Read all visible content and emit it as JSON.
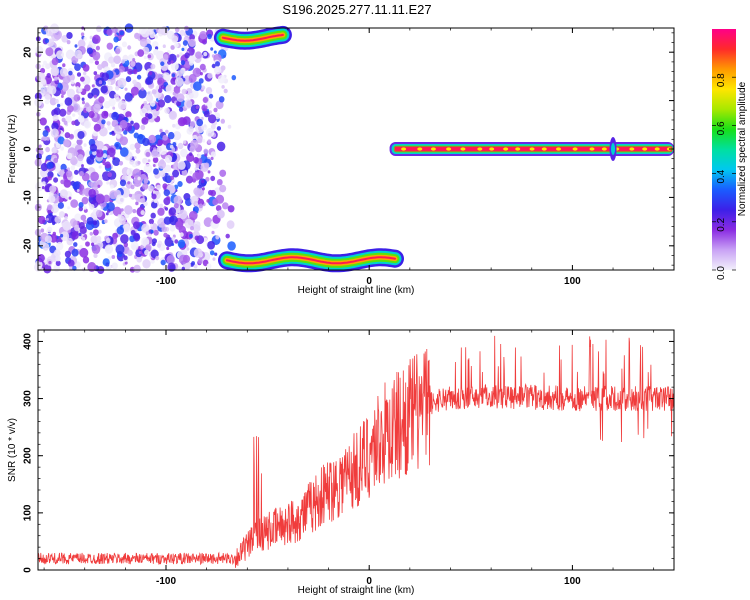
{
  "title": "S196.2025.277.11.11.E27",
  "chart_data": [
    {
      "type": "heatmap",
      "xlabel": "Height of straight line (km)",
      "ylabel": "Frequency (Hz)",
      "xlim": [
        -163,
        150
      ],
      "ylim": [
        -25,
        25
      ],
      "xticks": [
        -100,
        0,
        100
      ],
      "yticks": [
        -20,
        -10,
        0,
        10,
        20
      ],
      "colorbar": {
        "label": "Normalized spectral amplitude",
        "range": [
          0,
          1
        ],
        "ticks": [
          0.0,
          0.2,
          0.4,
          0.6,
          0.8
        ],
        "colors": [
          "#f2f0fb",
          "#c9a2f5",
          "#8a2be2",
          "#3c20e8",
          "#1a5cff",
          "#00c8f0",
          "#00e0a0",
          "#18e018",
          "#a8e800",
          "#ffe600",
          "#ff9900",
          "#ff2a2a",
          "#ff0088"
        ]
      },
      "features": [
        {
          "name": "noise",
          "x_range": [
            -163,
            -72
          ],
          "y_range": [
            -25,
            25
          ]
        },
        {
          "name": "lower-band",
          "x_range": [
            -70,
            13
          ],
          "y": -23
        },
        {
          "name": "upper-band",
          "x_range": [
            -72,
            -42
          ],
          "y": 23
        },
        {
          "name": "carrier",
          "x_range": [
            12,
            150
          ],
          "y": 0
        }
      ]
    },
    {
      "type": "line",
      "xlabel": "Height of straight line (km)",
      "ylabel": "SNR (10 * v/v)",
      "xlim": [
        -163,
        150
      ],
      "ylim": [
        0,
        420
      ],
      "xticks": [
        -100,
        0,
        100
      ],
      "yticks": [
        0,
        100,
        200,
        300,
        400
      ],
      "color": "#f03c3c",
      "trend": [
        {
          "x": -163,
          "y": 20
        },
        {
          "x": -66,
          "y": 20
        },
        {
          "x": -55,
          "y": 60
        },
        {
          "x": -35,
          "y": 90
        },
        {
          "x": -20,
          "y": 140
        },
        {
          "x": -5,
          "y": 180
        },
        {
          "x": 5,
          "y": 230
        },
        {
          "x": 20,
          "y": 270
        },
        {
          "x": 35,
          "y": 300
        },
        {
          "x": 60,
          "y": 305
        },
        {
          "x": 100,
          "y": 300
        },
        {
          "x": 150,
          "y": 300
        }
      ]
    }
  ]
}
